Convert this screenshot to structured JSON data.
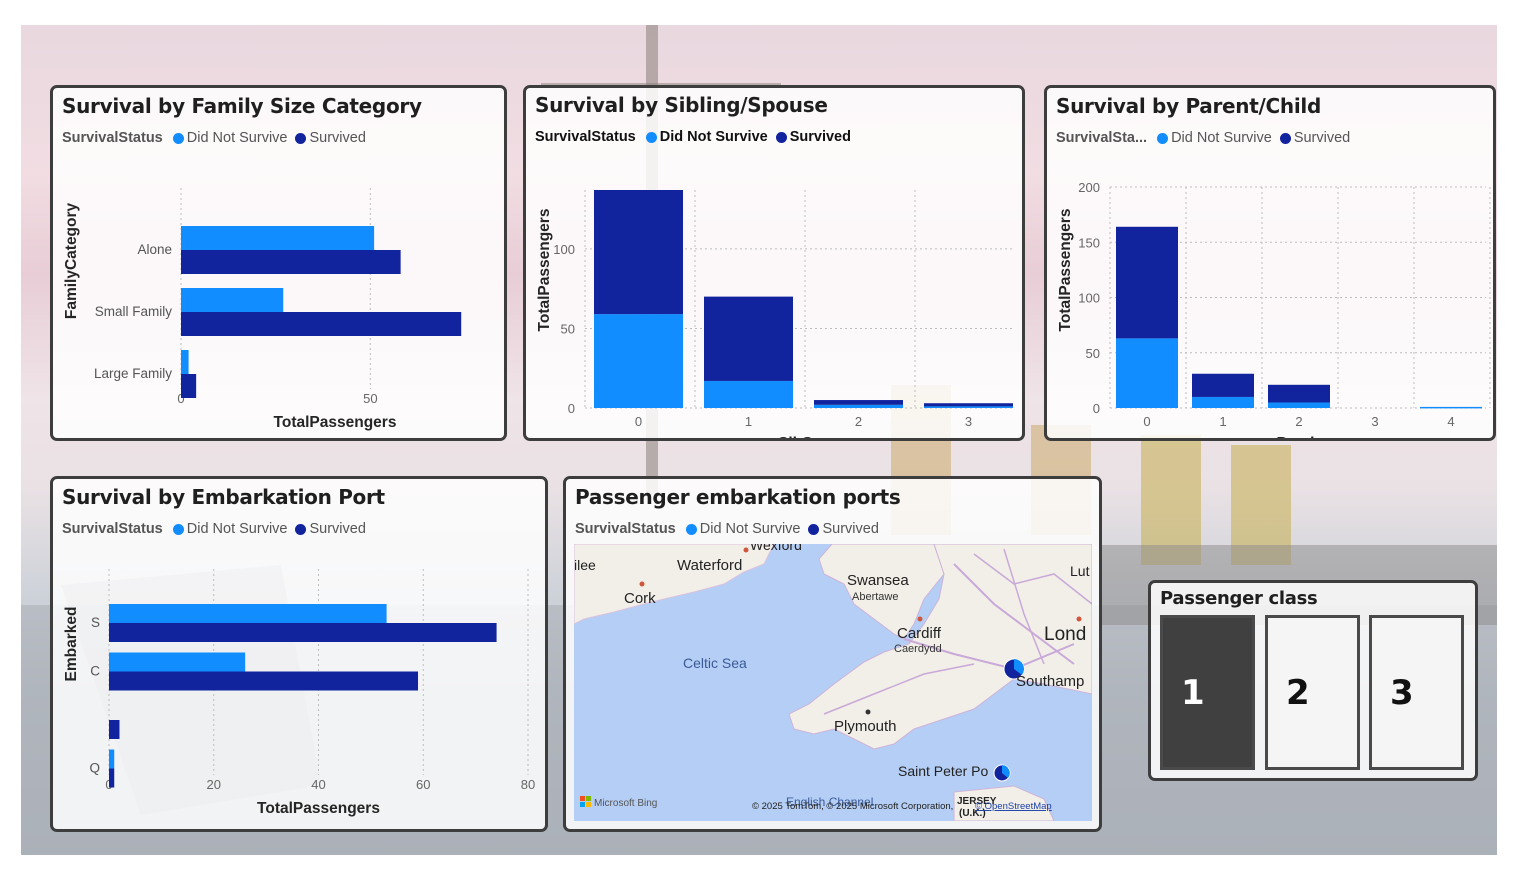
{
  "colors": {
    "did_not_survive": "#118dff",
    "survived": "#12239e",
    "slicer_selected": "#404040"
  },
  "charts": {
    "family": {
      "title": "Survival by Family Size Category",
      "legend": {
        "title": "SurvivalStatus",
        "items": [
          "Did Not Survive",
          "Survived"
        ]
      },
      "xlabel": "TotalPassengers",
      "ylabel": "FamilyCategory",
      "ticks": [
        "0",
        "50"
      ]
    },
    "sibsp": {
      "title": "Survival by Sibling/Spouse",
      "legend": {
        "title": "SurvivalStatus",
        "items": [
          "Did Not Survive",
          "Survived"
        ]
      },
      "xlabel": "SibSp",
      "ylabel": "TotalPassengers"
    },
    "parch": {
      "title": "Survival by Parent/Child",
      "legend": {
        "title": "SurvivalSta...",
        "items": [
          "Did Not Survive",
          "Survived"
        ]
      },
      "xlabel": "Parch",
      "ylabel": "TotalPassengers"
    },
    "embark": {
      "title": "Survival by Embarkation Port",
      "legend": {
        "title": "SurvivalStatus",
        "items": [
          "Did Not Survive",
          "Survived"
        ]
      },
      "xlabel": "TotalPassengers",
      "ylabel": "Embarked"
    }
  },
  "chart_data": [
    {
      "type": "bar",
      "orientation": "horizontal",
      "title": "Survival by Family Size Category",
      "categories": [
        "Alone",
        "Small Family",
        "Large Family"
      ],
      "series": [
        {
          "name": "Did Not Survive",
          "values": [
            51,
            27,
            2
          ]
        },
        {
          "name": "Survived",
          "values": [
            58,
            74,
            4
          ]
        }
      ],
      "xlabel": "TotalPassengers",
      "ylabel": "FamilyCategory",
      "xlim": [
        0,
        75
      ],
      "xticks": [
        0,
        50
      ]
    },
    {
      "type": "bar",
      "stacked": true,
      "title": "Survival by Sibling/Spouse",
      "categories": [
        "0",
        "1",
        "2",
        "3"
      ],
      "series": [
        {
          "name": "Did Not Survive",
          "values": [
            59,
            17,
            2,
            1
          ]
        },
        {
          "name": "Survived",
          "values": [
            78,
            53,
            3,
            2
          ]
        }
      ],
      "xlabel": "SibSp",
      "ylabel": "TotalPassengers",
      "ylim": [
        0,
        137
      ],
      "yticks": [
        0,
        50,
        100
      ]
    },
    {
      "type": "bar",
      "stacked": true,
      "title": "Survival by Parent/Child",
      "categories": [
        "0",
        "1",
        "2",
        "3",
        "4"
      ],
      "series": [
        {
          "name": "Did Not Survive",
          "values": [
            63,
            10,
            5,
            0,
            1
          ]
        },
        {
          "name": "Survived",
          "values": [
            101,
            21,
            16,
            0,
            0
          ]
        }
      ],
      "xlabel": "Parch",
      "ylabel": "TotalPassengers",
      "ylim": [
        0,
        200
      ],
      "yticks": [
        0,
        50,
        100,
        150,
        200
      ]
    },
    {
      "type": "bar",
      "orientation": "horizontal",
      "title": "Survival by Embarkation Port",
      "categories": [
        "S",
        "C",
        "",
        "Q"
      ],
      "series": [
        {
          "name": "Did Not Survive",
          "values": [
            53,
            26,
            0,
            1
          ]
        },
        {
          "name": "Survived",
          "values": [
            74,
            59,
            2,
            1
          ]
        }
      ],
      "xlabel": "TotalPassengers",
      "ylabel": "Embarked",
      "xlim": [
        0,
        80
      ],
      "xticks": [
        0,
        20,
        40,
        60,
        80
      ]
    }
  ],
  "map": {
    "title": "Passenger embarkation ports",
    "legend": {
      "title": "SurvivalStatus",
      "items": [
        "Did Not Survive",
        "Survived"
      ]
    },
    "labels": {
      "wexford": "Wexford",
      "ilee": "ilee",
      "waterford": "Waterford",
      "cork": "Cork",
      "swansea": "Swansea",
      "abertawe": "Abertawe",
      "lut": "Lut",
      "cardiff": "Cardiff",
      "caerdydd": "Caerdydd",
      "lond": "Lond",
      "celtic": "Celtic Sea",
      "southampton": "Southamp",
      "plymouth": "Plymouth",
      "saintpeter": "Saint Peter Po",
      "jersey": "JERSEY",
      "uk": "(U.K.)",
      "english": "English Channel"
    },
    "brand": "Microsoft Bing",
    "copyright": "© 2025 TomTom, © 2025 Microsoft Corporation,",
    "osm": "© OpenStreetMap"
  },
  "slicer": {
    "title": "Passenger class",
    "options": [
      {
        "label": "1",
        "selected": true
      },
      {
        "label": "2",
        "selected": false
      },
      {
        "label": "3",
        "selected": false
      }
    ]
  }
}
